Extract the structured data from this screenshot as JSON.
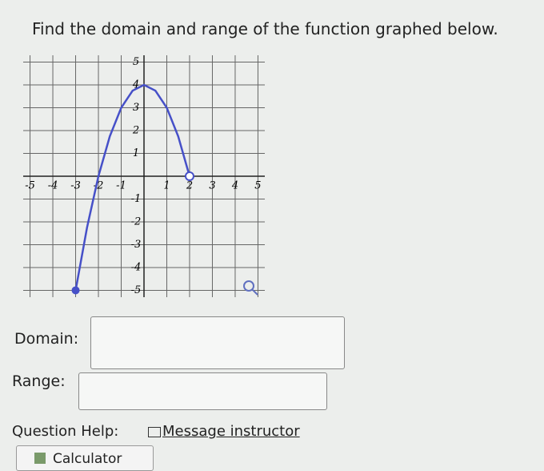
{
  "question": "Find the domain and range of the function graphed below.",
  "graph": {
    "xlim": [
      -5.3,
      5.3
    ],
    "ylim": [
      -5.3,
      5.3
    ],
    "xticks": [
      -5,
      -4,
      -3,
      -2,
      -1,
      1,
      2,
      3,
      4,
      5
    ],
    "yticks": [
      -5,
      -4,
      -3,
      -2,
      -1,
      1,
      2,
      3,
      4,
      5
    ],
    "curve": {
      "color": "#4650c8",
      "x": [
        -3,
        -2.5,
        -2,
        -1.5,
        -1,
        -0.5,
        0,
        0.5,
        1,
        1.5,
        2
      ],
      "y": [
        -5,
        -2.25,
        0,
        1.75,
        3,
        3.75,
        4,
        3.75,
        3,
        1.75,
        0
      ]
    },
    "closed_point": [
      -3,
      -5
    ],
    "open_point": [
      2,
      0
    ]
  },
  "domain_label": "Domain:",
  "range_label": "Range:",
  "help_label": "Question Help:",
  "message_link": "Message instructor",
  "calculator": "Calculator"
}
